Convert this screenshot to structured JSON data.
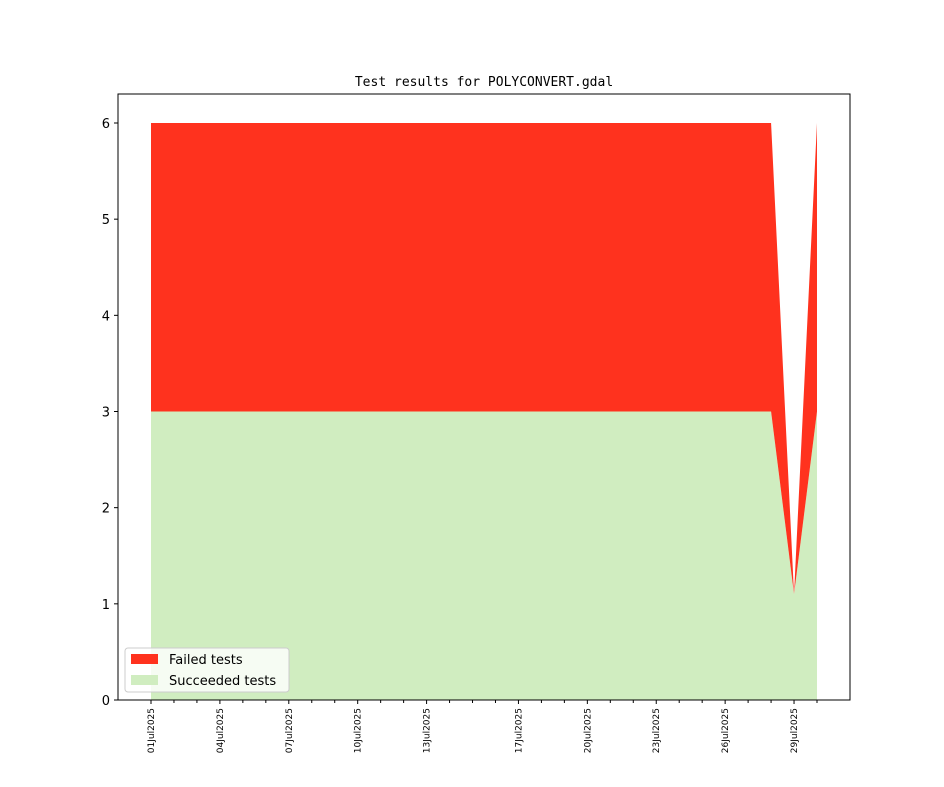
{
  "chart_data": {
    "type": "area",
    "stacked": true,
    "title": "Test results for POLYCONVERT.gdal",
    "xlabel": "",
    "ylabel": "",
    "x_start": "2025-07-01",
    "x_end": "2025-07-30",
    "ylim": [
      0,
      6.3
    ],
    "yticks": [
      0,
      1,
      2,
      3,
      4,
      5,
      6
    ],
    "xtick_labels": [
      "01Jul2025",
      "04Jul2025",
      "07Jul2025",
      "10Jul2025",
      "13Jul2025",
      "17Jul2025",
      "20Jul2025",
      "23Jul2025",
      "26Jul2025",
      "29Jul2025"
    ],
    "x": [
      "2025-07-01",
      "2025-07-02",
      "2025-07-03",
      "2025-07-04",
      "2025-07-05",
      "2025-07-06",
      "2025-07-07",
      "2025-07-08",
      "2025-07-09",
      "2025-07-10",
      "2025-07-11",
      "2025-07-12",
      "2025-07-13",
      "2025-07-14",
      "2025-07-15",
      "2025-07-16",
      "2025-07-17",
      "2025-07-18",
      "2025-07-19",
      "2025-07-20",
      "2025-07-21",
      "2025-07-22",
      "2025-07-23",
      "2025-07-24",
      "2025-07-25",
      "2025-07-26",
      "2025-07-27",
      "2025-07-28",
      "2025-07-29",
      "2025-07-30"
    ],
    "series": [
      {
        "name": "Succeeded tests",
        "color": "#d0edc0",
        "values": [
          3,
          3,
          3,
          3,
          3,
          3,
          3,
          3,
          3,
          3,
          3,
          3,
          3,
          3,
          3,
          3,
          3,
          3,
          3,
          3,
          3,
          3,
          3,
          3,
          3,
          3,
          3,
          3,
          1.1,
          3
        ]
      },
      {
        "name": "Failed tests",
        "color": "#ff321e",
        "values": [
          3,
          3,
          3,
          3,
          3,
          3,
          3,
          3,
          3,
          3,
          3,
          3,
          3,
          3,
          3,
          3,
          3,
          3,
          3,
          3,
          3,
          3,
          3,
          3,
          3,
          3,
          3,
          3,
          0,
          3
        ]
      }
    ],
    "legend": {
      "position": "lower-left",
      "entries": [
        "Failed tests",
        "Succeeded tests"
      ]
    },
    "grid": false
  }
}
